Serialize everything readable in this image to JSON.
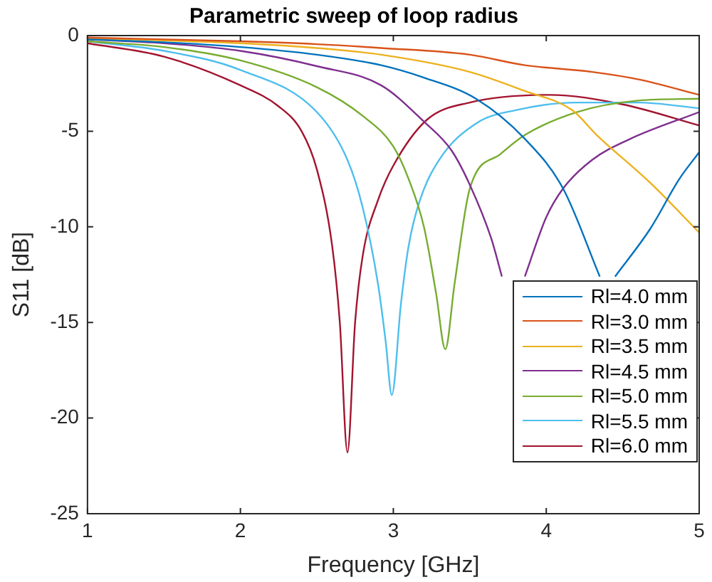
{
  "chart_data": {
    "type": "line",
    "title": "Parametric sweep of loop radius",
    "xlabel": "Frequency [GHz]",
    "ylabel": "S11 [dB]",
    "xlim": [
      1,
      5
    ],
    "xticks": [
      1,
      2,
      3,
      4,
      5
    ],
    "ylim": [
      -25,
      0
    ],
    "yticks": [
      -25,
      -20,
      -15,
      -10,
      -5,
      0
    ],
    "grid": false,
    "legend": "bottom right",
    "marker": "none",
    "line_style": "solid",
    "series": [
      {
        "name": "Rl=4.0 mm",
        "color": "#0072bd",
        "x": [
          1,
          1.5,
          2,
          2.5,
          2.92,
          3.2,
          3.54,
          3.86,
          4.11,
          4.35,
          4.4,
          4.45,
          4.68,
          4.87,
          5
        ],
        "values": [
          -0.2,
          -0.35,
          -0.6,
          -1.0,
          -1.55,
          -2.2,
          -3.3,
          -5.4,
          -8,
          -12.6,
          null,
          -12.6,
          -10.1,
          -7.5,
          -6.1
        ]
      },
      {
        "name": "Rl=3.0 mm",
        "color": "#d95319",
        "x": [
          1,
          1.5,
          2,
          2.5,
          2.92,
          3.5,
          3.86,
          4.3,
          4.61,
          5
        ],
        "values": [
          -0.1,
          -0.2,
          -0.3,
          -0.45,
          -0.65,
          -1.0,
          -1.55,
          -1.9,
          -2.3,
          -3.1
        ]
      },
      {
        "name": "Rl=3.5 mm",
        "color": "#edb120",
        "x": [
          1,
          1.5,
          2,
          2.5,
          2.92,
          3.5,
          3.86,
          4.17,
          4.33,
          4.68,
          5
        ],
        "values": [
          -0.15,
          -0.25,
          -0.4,
          -0.65,
          -1.0,
          -1.9,
          -2.9,
          -3.9,
          -5.2,
          -7.7,
          -10.3
        ]
      },
      {
        "name": "Rl=4.5 mm",
        "color": "#7e2f8e",
        "x": [
          1,
          1.5,
          2,
          2.5,
          2.92,
          3.2,
          3.38,
          3.5,
          3.64,
          3.71,
          3.78,
          3.86,
          4.0,
          4.11,
          4.3,
          4.55,
          5
        ],
        "values": [
          -0.2,
          -0.4,
          -0.8,
          -1.6,
          -2.6,
          -4.5,
          -6,
          -7.8,
          -10.6,
          -12.6,
          null,
          -12.6,
          -9.5,
          -8,
          -6.5,
          -5.4,
          -4.0
        ]
      },
      {
        "name": "Rl=5.0 mm",
        "color": "#77ac30",
        "x": [
          1,
          1.5,
          2,
          2.5,
          2.8,
          3,
          3.1,
          3.2,
          3.28,
          3.34,
          3.4,
          3.5,
          3.7,
          3.86,
          4.2,
          4.6,
          5
        ],
        "values": [
          -0.3,
          -0.6,
          -1.3,
          -2.7,
          -4.2,
          -5.8,
          -7.5,
          -10,
          -13.5,
          -16.4,
          -13,
          -8,
          -6.2,
          -5.2,
          -4,
          -3.4,
          -3.3
        ]
      },
      {
        "name": "Rl=5.5 mm",
        "color": "#4dbeee",
        "x": [
          1,
          1.5,
          2,
          2.5,
          2.7,
          2.8,
          2.9,
          2.95,
          2.99,
          3.05,
          3.1,
          3.17,
          3.3,
          3.54,
          3.8,
          4.2,
          4.6,
          5
        ],
        "values": [
          -0.3,
          -0.8,
          -1.8,
          -4,
          -6.5,
          -9,
          -13,
          -16,
          -18.8,
          -14,
          -11,
          -8.7,
          -6.5,
          -4.6,
          -3.9,
          -3.5,
          -3.5,
          -3.8
        ]
      },
      {
        "name": "Rl=6.0 mm",
        "color": "#a2142f",
        "x": [
          1,
          1.5,
          2,
          2.25,
          2.4,
          2.5,
          2.6,
          2.65,
          2.7,
          2.75,
          2.8,
          2.9,
          3.0,
          3.22,
          3.5,
          4.02,
          4.5,
          5
        ],
        "values": [
          -0.4,
          -1.1,
          -2.6,
          -3.7,
          -5,
          -7,
          -11,
          -15,
          -21.8,
          -15,
          -11.5,
          -8.6,
          -6.8,
          -4.4,
          -3.5,
          -3.1,
          -3.6,
          -4.7
        ]
      }
    ]
  }
}
